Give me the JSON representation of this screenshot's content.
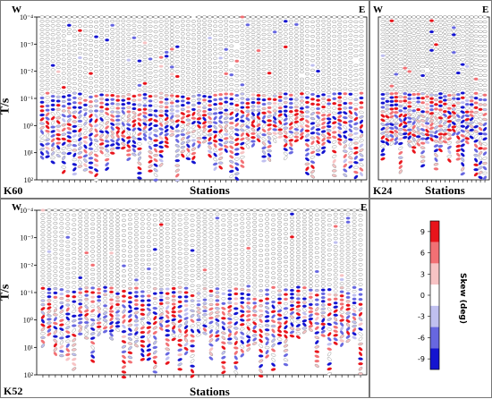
{
  "chart_data": [
    {
      "type": "scatter",
      "id": "K60",
      "panel_label": "K60",
      "west_label": "W",
      "east_label": "E",
      "xlabel": "Stations",
      "ylabel": "T/s",
      "ylog": true,
      "yinverted": true,
      "ylim": [
        0.0001,
        100
      ],
      "yticks": [
        {
          "value": 0.0001,
          "label": "10⁻⁴"
        },
        {
          "value": 0.001,
          "label": "10⁻³"
        },
        {
          "value": 0.01,
          "label": "10⁻²"
        },
        {
          "value": 0.1,
          "label": "10⁻¹"
        },
        {
          "value": 1,
          "label": "10⁰"
        },
        {
          "value": 10,
          "label": "10¹"
        },
        {
          "value": 100,
          "label": "10²"
        }
      ],
      "station_count": 60,
      "color_field": "skew_deg",
      "note_values": "symbol positions estimated: each station has a column of ellipses from 1e-4 s down to its maximum period"
    },
    {
      "type": "scatter",
      "id": "K24",
      "panel_label": "K24",
      "west_label": "W",
      "east_label": "E",
      "xlabel": "Stations",
      "ylabel": "",
      "ylog": true,
      "yinverted": true,
      "ylim": [
        0.0001,
        100
      ],
      "station_count": 24,
      "color_field": "skew_deg"
    },
    {
      "type": "scatter",
      "id": "K52",
      "panel_label": "K52",
      "west_label": "W",
      "east_label": "E",
      "xlabel": "Stations",
      "ylabel": "T/s",
      "ylog": true,
      "yinverted": true,
      "ylim": [
        0.0001,
        100
      ],
      "yticks": [
        {
          "value": 0.0001,
          "label": "10⁻⁴"
        },
        {
          "value": 0.001,
          "label": "10⁻³"
        },
        {
          "value": 0.01,
          "label": "10⁻²"
        },
        {
          "value": 0.1,
          "label": "10⁻¹"
        },
        {
          "value": 1,
          "label": "10⁰"
        },
        {
          "value": 10,
          "label": "10¹"
        },
        {
          "value": 100,
          "label": "10²"
        }
      ],
      "station_count": 52,
      "color_field": "skew_deg"
    }
  ],
  "colorbar": {
    "title": "Skew (deg)",
    "ticks": [
      "9",
      "6",
      "3",
      "0",
      "-3",
      "-6",
      "-9"
    ],
    "colors": [
      "#e8141b",
      "#f27074",
      "#f7c3c4",
      "#ffffff",
      "#c0c0f0",
      "#6767e0",
      "#1414d0"
    ]
  }
}
